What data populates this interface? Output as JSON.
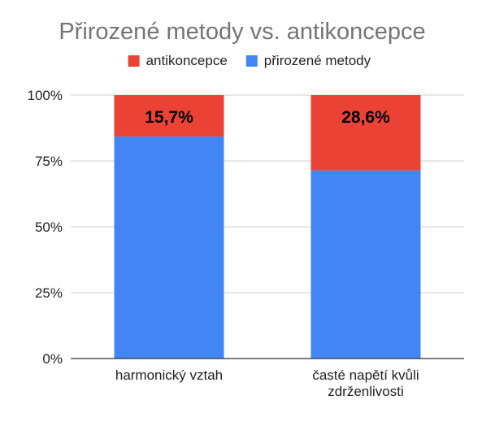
{
  "chart_data": {
    "type": "bar",
    "stacked": "percent",
    "title": "Přirozené metody vs. antikoncepce",
    "xlabel": "",
    "ylabel": "",
    "ylim": [
      0,
      100
    ],
    "yticks": [
      "0%",
      "25%",
      "50%",
      "75%",
      "100%"
    ],
    "ytick_values": [
      0,
      25,
      50,
      75,
      100
    ],
    "grid": true,
    "legend_position": "top",
    "categories": [
      [
        "harmonický vztah"
      ],
      [
        "časté napětí  kvůli",
        "zdrženlivosti"
      ]
    ],
    "series": [
      {
        "name": "přirozené metody",
        "color": "#4285f4",
        "values": [
          84.3,
          71.4
        ],
        "labels": [
          "",
          ""
        ]
      },
      {
        "name": "antikoncepce",
        "color": "#ea4335",
        "values": [
          15.7,
          28.6
        ],
        "labels": [
          "15,7%",
          "28,6%"
        ]
      }
    ],
    "legend_order": [
      1,
      0
    ],
    "colors": {
      "title": "#757575",
      "text": "#222222",
      "grid": "#cccccc",
      "axis": "#333333",
      "data_label": "#000000"
    }
  }
}
